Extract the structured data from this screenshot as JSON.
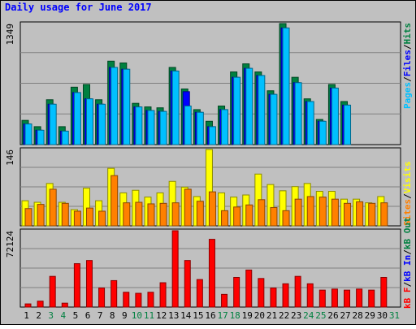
{
  "title": "Daily usage for June 2017",
  "colors": {
    "background": "#c0c0c0",
    "border": "#000000",
    "pages": "#00c0ff",
    "files": "#0000ff",
    "hits": "#008040",
    "visits": "#ffff00",
    "sites": "#ff8000",
    "kb_in": "#0000ff",
    "kb_out": "#008040",
    "kb_f": "#ff0000"
  },
  "legends": {
    "top": [
      {
        "text": "Pages",
        "color": "#00c0ff"
      },
      {
        "text": "/",
        "color": "#000000"
      },
      {
        "text": "Files",
        "color": "#0000ff"
      },
      {
        "text": "/",
        "color": "#000000"
      },
      {
        "text": "Hits",
        "color": "#008040"
      }
    ],
    "middle": [
      {
        "text": "Sites",
        "color": "#ff8000"
      },
      {
        "text": "/",
        "color": "#000000"
      },
      {
        "text": "Visits",
        "color": "#ffff00"
      }
    ],
    "bottom": [
      {
        "text": "kB F",
        "color": "#ff0000"
      },
      {
        "text": "/",
        "color": "#000000"
      },
      {
        "text": "kB In",
        "color": "#0000ff"
      },
      {
        "text": "/",
        "color": "#000000"
      },
      {
        "text": "kB Out",
        "color": "#008040"
      }
    ]
  },
  "chart_data": [
    {
      "type": "bar",
      "panel": "hits-files-pages",
      "ymax_label": "1349",
      "ylim": [
        0,
        1349
      ],
      "categories": [
        "1",
        "2",
        "3",
        "4",
        "5",
        "6",
        "7",
        "8",
        "9",
        "10",
        "11",
        "12",
        "13",
        "14",
        "15",
        "16",
        "17",
        "18",
        "19",
        "20",
        "21",
        "22",
        "23",
        "24",
        "25",
        "26",
        "27",
        "28",
        "29",
        "30",
        "31"
      ],
      "weekend_days": [
        "3",
        "4",
        "10",
        "11",
        "17",
        "18",
        "24",
        "25",
        "31"
      ],
      "series": [
        {
          "name": "Hits",
          "color": "#008040",
          "values": [
            270,
            200,
            500,
            200,
            640,
            670,
            500,
            930,
            910,
            460,
            420,
            410,
            860,
            620,
            390,
            260,
            430,
            810,
            900,
            810,
            600,
            1349,
            750,
            510,
            280,
            670,
            480,
            0,
            0,
            0,
            0
          ]
        },
        {
          "name": "Files",
          "color": "#0000ff",
          "values": [
            230,
            160,
            450,
            150,
            580,
            510,
            450,
            860,
            840,
            420,
            380,
            370,
            820,
            590,
            360,
            200,
            390,
            750,
            850,
            770,
            560,
            1300,
            690,
            480,
            260,
            630,
            440,
            0,
            0,
            0,
            0
          ]
        },
        {
          "name": "Pages",
          "color": "#00c0ff",
          "values": [
            230,
            160,
            450,
            150,
            580,
            510,
            450,
            860,
            840,
            420,
            380,
            370,
            820,
            430,
            360,
            200,
            390,
            750,
            850,
            770,
            560,
            1300,
            690,
            480,
            260,
            630,
            440,
            0,
            0,
            0,
            0
          ]
        }
      ]
    },
    {
      "type": "bar",
      "panel": "visits-sites",
      "ymax_label": "146",
      "ylim": [
        0,
        146
      ],
      "categories": [
        "1",
        "2",
        "3",
        "4",
        "5",
        "6",
        "7",
        "8",
        "9",
        "10",
        "11",
        "12",
        "13",
        "14",
        "15",
        "16",
        "17",
        "18",
        "19",
        "20",
        "21",
        "22",
        "23",
        "24",
        "25",
        "26",
        "27",
        "28",
        "29",
        "30",
        "31"
      ],
      "series": [
        {
          "name": "Visits",
          "color": "#ffff00",
          "values": [
            48,
            45,
            81,
            45,
            31,
            72,
            48,
            110,
            63,
            68,
            55,
            63,
            85,
            74,
            56,
            146,
            63,
            55,
            59,
            99,
            79,
            67,
            75,
            81,
            66,
            66,
            51,
            51,
            44,
            56,
            0
          ]
        },
        {
          "name": "Sites",
          "color": "#ff8000",
          "values": [
            33,
            41,
            70,
            43,
            28,
            34,
            28,
            96,
            44,
            45,
            42,
            43,
            44,
            70,
            47,
            65,
            29,
            36,
            40,
            50,
            35,
            29,
            51,
            56,
            55,
            51,
            43,
            46,
            43,
            44,
            0
          ]
        }
      ]
    },
    {
      "type": "bar",
      "panel": "kbytes",
      "ymax_label": "72124",
      "ylim": [
        0,
        72124
      ],
      "categories": [
        "1",
        "2",
        "3",
        "4",
        "5",
        "6",
        "7",
        "8",
        "9",
        "10",
        "11",
        "12",
        "13",
        "14",
        "15",
        "16",
        "17",
        "18",
        "19",
        "20",
        "21",
        "22",
        "23",
        "24",
        "25",
        "26",
        "27",
        "28",
        "29",
        "30",
        "31"
      ],
      "series": [
        {
          "name": "kB F",
          "color": "#ff0000",
          "values": [
            3000,
            5600,
            29000,
            3700,
            41000,
            44000,
            18000,
            25000,
            14000,
            13000,
            14000,
            23000,
            72124,
            44000,
            26000,
            64000,
            12000,
            28000,
            35000,
            27000,
            18000,
            22000,
            29000,
            22000,
            16000,
            17000,
            16000,
            17000,
            16000,
            28000,
            0
          ]
        }
      ]
    }
  ]
}
